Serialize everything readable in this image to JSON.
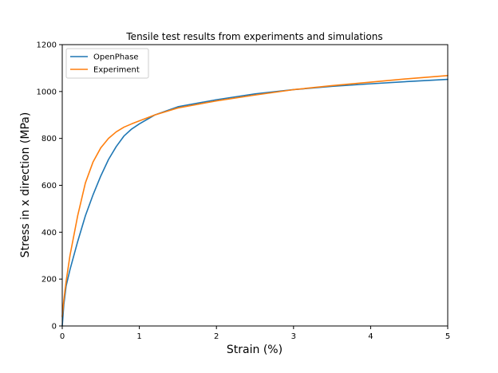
{
  "chart_data": {
    "type": "line",
    "title": "Tensile test results from experiments and simulations",
    "xlabel": "Strain (%)",
    "ylabel": "Stress in x direction (MPa)",
    "xlim": [
      0,
      5
    ],
    "ylim": [
      0,
      1200
    ],
    "xticks": [
      "0",
      "1",
      "2",
      "3",
      "4",
      "5"
    ],
    "yticks": [
      "0",
      "200",
      "400",
      "600",
      "800",
      "1000",
      "1200"
    ],
    "grid": false,
    "legend_position": "top-left",
    "series": [
      {
        "name": "OpenPhase",
        "color": "#1f77b4",
        "x": [
          0,
          0.02,
          0.05,
          0.1,
          0.2,
          0.3,
          0.4,
          0.5,
          0.6,
          0.7,
          0.8,
          0.9,
          1.0,
          1.2,
          1.5,
          2.0,
          2.5,
          3.0,
          3.5,
          4.0,
          4.5,
          5.0
        ],
        "y": [
          0,
          90,
          170,
          240,
          360,
          470,
          560,
          640,
          710,
          765,
          810,
          840,
          862,
          900,
          935,
          965,
          990,
          1008,
          1022,
          1033,
          1043,
          1052
        ]
      },
      {
        "name": "Experiment",
        "color": "#ff7f0e",
        "x": [
          0,
          0.02,
          0.05,
          0.1,
          0.2,
          0.3,
          0.4,
          0.5,
          0.6,
          0.7,
          0.8,
          0.9,
          1.0,
          1.2,
          1.5,
          2.0,
          2.5,
          3.0,
          3.5,
          4.0,
          4.5,
          5.0
        ],
        "y": [
          40,
          110,
          190,
          300,
          470,
          610,
          700,
          760,
          800,
          828,
          848,
          862,
          875,
          900,
          930,
          960,
          985,
          1008,
          1025,
          1040,
          1055,
          1068
        ]
      }
    ]
  }
}
